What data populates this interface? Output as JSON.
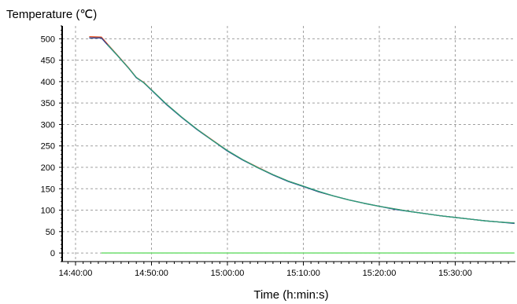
{
  "chart_data": {
    "type": "line",
    "title": "Temperature (℃)",
    "xlabel": "Time (h:min:s)",
    "ylabel": "",
    "ylim": [
      -20,
      530
    ],
    "xlim_minutes": [
      0,
      58
    ],
    "grid": true,
    "legend": "none",
    "x_ticks": [
      {
        "label": "14:40:00",
        "minute": 0
      },
      {
        "label": "14:50:00",
        "minute": 10
      },
      {
        "label": "15:00:00",
        "minute": 20
      },
      {
        "label": "15:10:00",
        "minute": 30
      },
      {
        "label": "15:20:00",
        "minute": 40
      },
      {
        "label": "15:30:00",
        "minute": 50
      }
    ],
    "y_ticks": [
      "0",
      "50",
      "100",
      "150",
      "200",
      "250",
      "300",
      "350",
      "400",
      "450",
      "500"
    ],
    "series": [
      {
        "color": "#e8501e",
        "points": [
          [
            1.8,
            505
          ],
          [
            3.4,
            504
          ],
          [
            4.2,
            488
          ],
          [
            5.5,
            462
          ],
          [
            7.0,
            432
          ],
          [
            8.0,
            410
          ],
          [
            9.0,
            398
          ],
          [
            10.0,
            381
          ],
          [
            12.0,
            347
          ],
          [
            14.0,
            317
          ],
          [
            16.0,
            289
          ],
          [
            18.0,
            264
          ],
          [
            20.0,
            239
          ],
          [
            22.0,
            218
          ],
          [
            24.0,
            200
          ],
          [
            26.0,
            183
          ],
          [
            28.0,
            168
          ],
          [
            30.0,
            156
          ],
          [
            32.0,
            143
          ],
          [
            34.0,
            133
          ],
          [
            36.0,
            124
          ],
          [
            38.0,
            116
          ],
          [
            40.0,
            109
          ],
          [
            42.0,
            103
          ],
          [
            44.0,
            97
          ],
          [
            46.0,
            92
          ],
          [
            48.0,
            87
          ],
          [
            50.0,
            83
          ],
          [
            52.0,
            79
          ],
          [
            54.0,
            75
          ],
          [
            56.0,
            72
          ],
          [
            57.8,
            70
          ]
        ]
      },
      {
        "color": "#2a3f8f",
        "points": [
          [
            1.8,
            502
          ],
          [
            3.4,
            502
          ],
          [
            4.2,
            486
          ],
          [
            5.5,
            461
          ],
          [
            7.0,
            431
          ],
          [
            8.0,
            409
          ],
          [
            9.0,
            397
          ],
          [
            10.0,
            380
          ],
          [
            12.0,
            346
          ],
          [
            14.0,
            316
          ],
          [
            16.0,
            288
          ],
          [
            18.0,
            263
          ],
          [
            20.0,
            238
          ],
          [
            22.0,
            217
          ],
          [
            24.0,
            199
          ],
          [
            26.0,
            182
          ],
          [
            28.0,
            167
          ],
          [
            30.0,
            155
          ],
          [
            32.0,
            143
          ],
          [
            34.0,
            133
          ],
          [
            36.0,
            124
          ],
          [
            38.0,
            116
          ],
          [
            40.0,
            109
          ],
          [
            42.0,
            102
          ],
          [
            44.0,
            97
          ],
          [
            46.0,
            92
          ],
          [
            48.0,
            87
          ],
          [
            50.0,
            83
          ],
          [
            52.0,
            79
          ],
          [
            54.0,
            75
          ],
          [
            56.0,
            72
          ],
          [
            57.8,
            69
          ]
        ]
      },
      {
        "color": "#2aa07a",
        "points": [
          [
            4.2,
            487
          ],
          [
            5.5,
            461
          ],
          [
            7.0,
            431
          ],
          [
            8.0,
            410
          ],
          [
            9.0,
            397
          ],
          [
            10.0,
            381
          ],
          [
            12.0,
            347
          ],
          [
            14.0,
            317
          ],
          [
            16.0,
            289
          ],
          [
            18.0,
            263
          ],
          [
            20.0,
            239
          ],
          [
            22.0,
            218
          ],
          [
            24.0,
            199
          ],
          [
            26.0,
            183
          ],
          [
            28.0,
            168
          ],
          [
            30.0,
            156
          ],
          [
            32.0,
            144
          ],
          [
            34.0,
            133
          ],
          [
            36.0,
            124
          ],
          [
            38.0,
            116
          ],
          [
            40.0,
            109
          ],
          [
            42.0,
            103
          ],
          [
            44.0,
            97
          ],
          [
            46.0,
            92
          ],
          [
            48.0,
            87
          ],
          [
            50.0,
            83
          ],
          [
            52.0,
            79
          ],
          [
            54.0,
            75
          ],
          [
            56.0,
            72
          ],
          [
            57.8,
            70
          ]
        ]
      },
      {
        "color": "#7ae07a",
        "points": [
          [
            3.4,
            0
          ],
          [
            57.8,
            0
          ]
        ]
      }
    ]
  }
}
